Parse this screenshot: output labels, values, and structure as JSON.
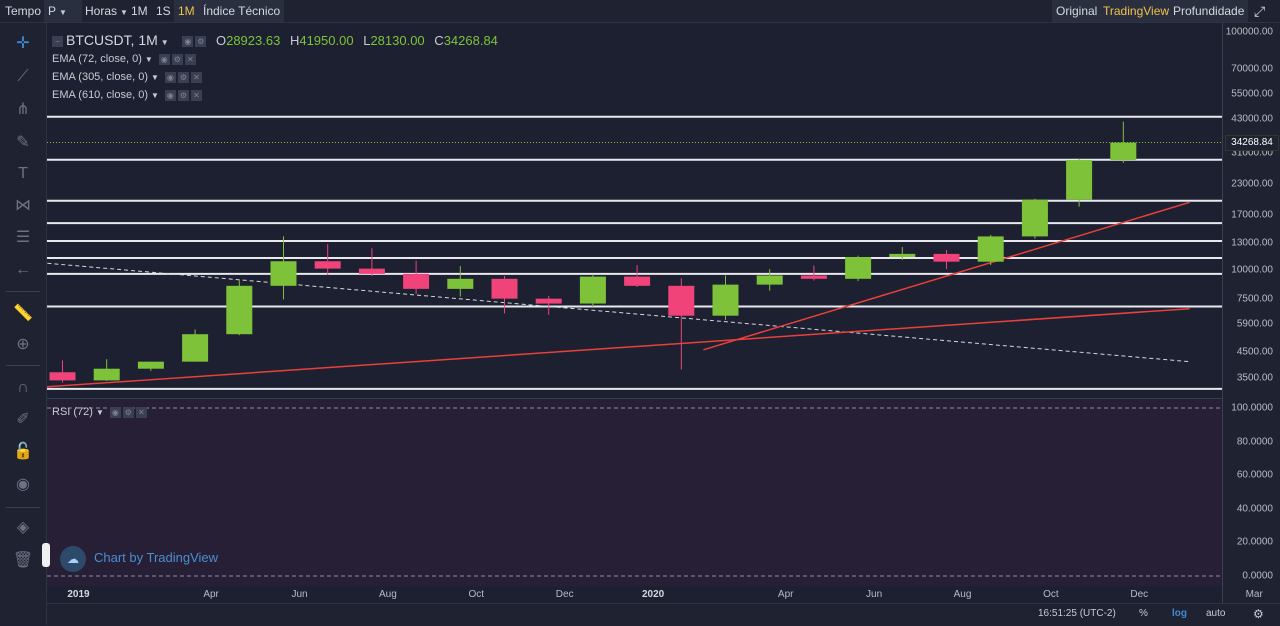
{
  "topbar": {
    "tempo_label": "Tempo",
    "period_value": "P",
    "horas_label": "Horas",
    "intervals": [
      "1M",
      "1S",
      "1M"
    ],
    "active_interval_index": 2,
    "indicator_label": "Índice Técnico",
    "views": [
      "Original",
      "TradingView",
      "Profundidade"
    ],
    "active_view_index": 1
  },
  "sidebar": {
    "tools": [
      "crosshair-icon",
      "trend-line-icon",
      "pitchfork-icon",
      "brush-icon",
      "text-icon",
      "pattern-icon",
      "fib-icon",
      "back-arrow-icon",
      "ruler-icon",
      "zoom-icon",
      "magnet-icon",
      "lock-drawing-icon",
      "lock-icon",
      "eye-icon",
      "layers-icon",
      "trash-icon"
    ]
  },
  "legend": {
    "symbol": "BTCUSDT, 1M",
    "o_label": "O",
    "o_value": "28923.63",
    "h_label": "H",
    "h_value": "41950.00",
    "l_label": "L",
    "l_value": "28130.00",
    "c_label": "C",
    "c_value": "34268.84"
  },
  "indicators": [
    {
      "label": "EMA (72, close, 0)"
    },
    {
      "label": "EMA (305, close, 0)"
    },
    {
      "label": "EMA (610, close, 0)"
    }
  ],
  "rsi": {
    "label": "RSI (72)"
  },
  "price_axis": {
    "ticks": [
      "100000.00",
      "70000.00",
      "55000.00",
      "43000.00",
      "31000.00",
      "23000.00",
      "17000.00",
      "13000.00",
      "10000.00",
      "7500.00",
      "5900.00",
      "4500.00",
      "3500.00"
    ],
    "current_price": "34268.84"
  },
  "rsi_axis": {
    "ticks": [
      "100.0000",
      "80.0000",
      "60.0000",
      "40.0000",
      "20.0000",
      "0.0000"
    ]
  },
  "time_axis": {
    "ticks": [
      "2019",
      "Apr",
      "Jun",
      "Aug",
      "Oct",
      "Dec",
      "2020",
      "Apr",
      "Jun",
      "Aug",
      "Oct",
      "Dec",
      "Mar"
    ],
    "bold": [
      true,
      false,
      false,
      false,
      false,
      false,
      true,
      false,
      false,
      false,
      false,
      false,
      false
    ]
  },
  "bottom": {
    "clock": "16:51:25 (UTC-2)",
    "percent": "%",
    "log": "log",
    "auto": "auto"
  },
  "watermark": {
    "text": "Chart by TradingView"
  },
  "colors": {
    "up": "#7ec23a",
    "down": "#f0437a",
    "trend": "#e8403a"
  },
  "chart_data": {
    "type": "candlestick",
    "scale": "log",
    "candles": [
      {
        "o": 3700,
        "h": 4150,
        "l": 3350,
        "c": 3420
      },
      {
        "o": 3420,
        "h": 4200,
        "l": 3400,
        "c": 3830
      },
      {
        "o": 3830,
        "h": 4100,
        "l": 3750,
        "c": 4100
      },
      {
        "o": 4100,
        "h": 5600,
        "l": 4100,
        "c": 5350
      },
      {
        "o": 5350,
        "h": 9000,
        "l": 5300,
        "c": 8550
      },
      {
        "o": 8550,
        "h": 13800,
        "l": 7500,
        "c": 10850
      },
      {
        "o": 10850,
        "h": 12800,
        "l": 9500,
        "c": 10100
      },
      {
        "o": 10100,
        "h": 12300,
        "l": 9400,
        "c": 9600
      },
      {
        "o": 9600,
        "h": 10900,
        "l": 7900,
        "c": 8300
      },
      {
        "o": 8300,
        "h": 10350,
        "l": 7700,
        "c": 9150
      },
      {
        "o": 9150,
        "h": 9400,
        "l": 6550,
        "c": 7550
      },
      {
        "o": 7550,
        "h": 7750,
        "l": 6450,
        "c": 7200
      },
      {
        "o": 7200,
        "h": 9550,
        "l": 6900,
        "c": 9350
      },
      {
        "o": 9350,
        "h": 10450,
        "l": 8450,
        "c": 8550
      },
      {
        "o": 8550,
        "h": 9200,
        "l": 3800,
        "c": 6400
      },
      {
        "o": 6400,
        "h": 9450,
        "l": 6150,
        "c": 8650
      },
      {
        "o": 8650,
        "h": 10050,
        "l": 8150,
        "c": 9450
      },
      {
        "o": 9450,
        "h": 10400,
        "l": 9000,
        "c": 9150
      },
      {
        "o": 9150,
        "h": 11450,
        "l": 8950,
        "c": 11300
      },
      {
        "o": 11300,
        "h": 12450,
        "l": 11000,
        "c": 11650
      },
      {
        "o": 11650,
        "h": 12100,
        "l": 10050,
        "c": 10800
      },
      {
        "o": 10800,
        "h": 14000,
        "l": 10450,
        "c": 13800
      },
      {
        "o": 13800,
        "h": 19900,
        "l": 13500,
        "c": 19700
      },
      {
        "o": 19700,
        "h": 29300,
        "l": 18400,
        "c": 28923
      },
      {
        "o": 28923.63,
        "h": 41950,
        "l": 28130,
        "c": 34268.84
      }
    ],
    "horizontal_levels": [
      44000,
      29000,
      19500,
      15700,
      13200,
      11200,
      9600,
      7000,
      3150
    ],
    "trend_lines": [
      {
        "x1": -0.5,
        "y1": 3200,
        "x2": 25.5,
        "y2": 6850
      },
      {
        "x1": 14.5,
        "y1": 4600,
        "x2": 25.5,
        "y2": 19200
      }
    ],
    "dashed_line": {
      "x1": -0.5,
      "y1": 10700,
      "x2": 25.5,
      "y2": 4100
    },
    "rsi_range": [
      0,
      100
    ]
  }
}
